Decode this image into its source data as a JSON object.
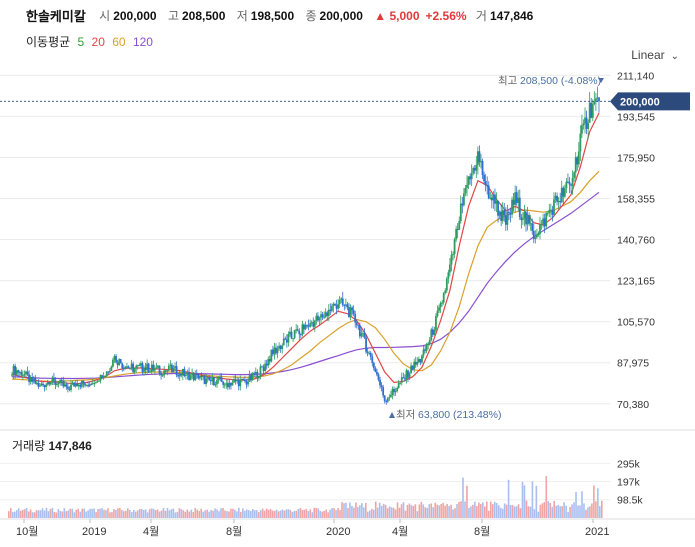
{
  "header": {
    "name": "한솔케미칼",
    "open_label": "시",
    "open": "200,000",
    "high_label": "고",
    "high": "208,500",
    "low_label": "저",
    "low": "198,500",
    "close_label": "종",
    "close": "200,000",
    "change": "▲ 5,000",
    "change_pct": "+2.56%",
    "volume_label": "거",
    "volume": "147,846"
  },
  "ma": {
    "label": "이동평균",
    "items": [
      {
        "label": "5",
        "color": "#2e9c2e"
      },
      {
        "label": "20",
        "color": "#e34545"
      },
      {
        "label": "60",
        "color": "#d8a12a"
      },
      {
        "label": "120",
        "color": "#8a4fd0"
      }
    ]
  },
  "scale": {
    "label": "Linear"
  },
  "chart_data": {
    "type": "candlestick",
    "y_ticks": [
      "211,140",
      "193,545",
      "175,950",
      "158,355",
      "140,760",
      "123,165",
      "105,570",
      "87,975",
      "70,380"
    ],
    "ylim": [
      60000,
      216000
    ],
    "current_price": "200,000",
    "high_annotation": {
      "label": "최고",
      "value": "208,500 (-4.08%)"
    },
    "low_annotation": {
      "label": "최저",
      "value": "63,800 (213.48%)"
    },
    "x_labels": [
      "10월",
      "2019",
      "4월",
      "8월",
      "2020",
      "4월",
      "8월",
      "2021"
    ],
    "close_series": [
      85000,
      84000,
      80500,
      78000,
      80000,
      79000,
      77000,
      79500,
      78500,
      81500,
      83000,
      90000,
      87000,
      85500,
      86000,
      85500,
      84500,
      85000,
      84000,
      82500,
      81500,
      80000,
      80500,
      79000,
      80000,
      79500,
      82000,
      86000,
      92500,
      96000,
      99500,
      102000,
      105000,
      107000,
      110000,
      114000,
      111000,
      105000,
      95000,
      85000,
      72000,
      76000,
      81000,
      86000,
      90000,
      100000,
      112000,
      128000,
      150000,
      165000,
      177000,
      162000,
      155000,
      148000,
      158000,
      150000,
      143000,
      148000,
      155000,
      160000,
      165000,
      183000,
      197000,
      200000
    ],
    "ma20": [
      83000,
      82000,
      81000,
      80000,
      79800,
      79600,
      79200,
      79000,
      79500,
      80500,
      82000,
      84500,
      85500,
      85700,
      85700,
      85400,
      85200,
      85000,
      84600,
      83800,
      83000,
      82000,
      81500,
      81000,
      80600,
      80500,
      81000,
      82800,
      86000,
      90000,
      94000,
      98000,
      101500,
      104000,
      107000,
      110000,
      109000,
      106000,
      100000,
      92000,
      84000,
      79500,
      80000,
      82000,
      86000,
      95000,
      106000,
      119000,
      138000,
      155000,
      166000,
      164000,
      158000,
      153000,
      155000,
      153000,
      148000,
      147000,
      150000,
      155000,
      160000,
      172000,
      187000,
      195000
    ],
    "ma60": [
      81000,
      80800,
      80500,
      80200,
      80000,
      80000,
      80200,
      80400,
      80600,
      81000,
      81600,
      82300,
      83000,
      83500,
      83800,
      84000,
      84000,
      84000,
      83800,
      83500,
      83000,
      82500,
      82200,
      82000,
      81800,
      81700,
      81800,
      82200,
      83200,
      84800,
      87000,
      90000,
      93000,
      96500,
      99500,
      102500,
      105000,
      106500,
      105500,
      103000,
      98000,
      92000,
      87500,
      85000,
      84500,
      87000,
      93000,
      101000,
      112000,
      126000,
      138000,
      146000,
      149000,
      151000,
      152500,
      153500,
      153000,
      152500,
      153000,
      155000,
      157000,
      161000,
      166000,
      170000
    ],
    "ma120": [
      82000,
      81800,
      81600,
      81400,
      81300,
      81200,
      81200,
      81200,
      81300,
      81400,
      81600,
      81900,
      82200,
      82500,
      82800,
      83000,
      83200,
      83300,
      83400,
      83400,
      83300,
      83200,
      83100,
      83000,
      82900,
      82900,
      83000,
      83200,
      83600,
      84200,
      85000,
      86000,
      87200,
      88500,
      89800,
      91000,
      92300,
      93500,
      94200,
      94500,
      94500,
      94600,
      94700,
      94900,
      95200,
      96200,
      98000,
      101000,
      105000,
      110000,
      116000,
      122000,
      127000,
      131500,
      135500,
      139000,
      142000,
      144500,
      147000,
      149500,
      152000,
      155000,
      158000,
      161000
    ],
    "volume": {
      "title": "거래량",
      "value": "147,846",
      "y_ticks": [
        "295k",
        "197k",
        "98.5k"
      ],
      "ylim": [
        0,
        340000
      ]
    }
  }
}
